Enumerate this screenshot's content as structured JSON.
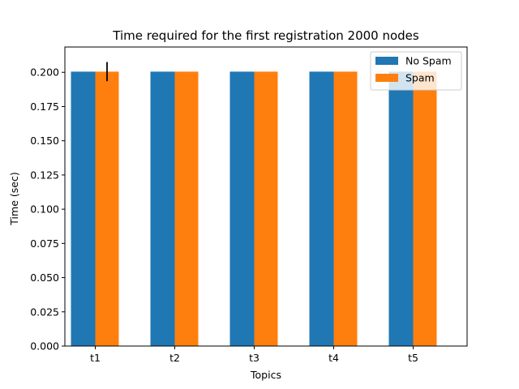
{
  "chart_data": {
    "type": "bar",
    "title": "Time required for the first registration 2000 nodes",
    "xlabel": "Topics",
    "ylabel": "Time (sec)",
    "categories": [
      "t1",
      "t2",
      "t3",
      "t4",
      "t5"
    ],
    "series": [
      {
        "name": "No Spam",
        "color": "#1f77b4",
        "values": [
          0.2005,
          0.2005,
          0.2005,
          0.2005,
          0.2005
        ],
        "errors": [
          0,
          0,
          0,
          0,
          0
        ]
      },
      {
        "name": "Spam",
        "color": "#ff7f0e",
        "values": [
          0.2005,
          0.2005,
          0.2005,
          0.2005,
          0.2005
        ],
        "errors": [
          0.007,
          0,
          0,
          0,
          0
        ]
      }
    ],
    "ylim": [
      0,
      0.2185
    ],
    "yticks": [
      "0.000",
      "0.025",
      "0.050",
      "0.075",
      "0.100",
      "0.125",
      "0.150",
      "0.175",
      "0.200"
    ],
    "grid": false,
    "legend": "top-right"
  }
}
